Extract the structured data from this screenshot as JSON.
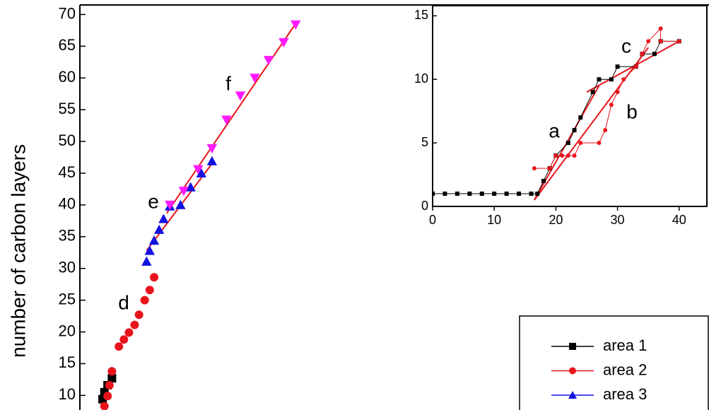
{
  "chart_data": [
    {
      "type": "scatter",
      "y_label": "number of carbon layers",
      "xlim": [
        0,
        100
      ],
      "ylim": [
        7.7,
        71.5
      ],
      "yticks": [
        10,
        15,
        20,
        25,
        30,
        35,
        40,
        45,
        50,
        55,
        60,
        65,
        70
      ],
      "series": [
        {
          "name": "area 1",
          "color": "#000000",
          "marker": "square",
          "x": [
            3.6,
            3.9,
            4.4,
            5.1
          ],
          "values": [
            9.4,
            10.5,
            11.6,
            12.7
          ]
        },
        {
          "name": "area 2",
          "color": "#e8141b",
          "marker": "circle",
          "x": [
            3.9,
            4.4,
            4.7,
            5.1,
            6.2,
            7.0,
            7.8,
            8.7,
            9.4,
            10.3,
            11.1,
            11.8
          ],
          "values": [
            8.3,
            9.9,
            11.6,
            13.8,
            17.7,
            18.8,
            19.9,
            21.1,
            22.7,
            25.0,
            26.6,
            28.6
          ]
        },
        {
          "name": "area 3",
          "color": "#1212e0",
          "marker": "triangle",
          "x": [
            10.6,
            11.1,
            11.8,
            12.6,
            13.3,
            14.3,
            16.0,
            17.6,
            19.3,
            21.0
          ],
          "values": [
            31.1,
            32.8,
            34.4,
            36.1,
            37.8,
            39.8,
            40.0,
            42.8,
            45.0,
            46.9
          ]
        },
        {
          "color": "#ff1aff",
          "marker": "down-triangle",
          "x": [
            14.3,
            16.5,
            18.8,
            21.0,
            23.3,
            25.5,
            27.8,
            30.0,
            32.4,
            34.3
          ],
          "values": [
            40.0,
            42.2,
            45.6,
            48.9,
            53.4,
            57.2,
            60.0,
            62.8,
            65.6,
            68.4
          ]
        }
      ],
      "fits": [
        {
          "color": "#e8141b",
          "x": [
            10.6,
            21.0
          ],
          "values": [
            32.8,
            46.5
          ]
        },
        {
          "color": "#e8141b",
          "x": [
            13.8,
            34.6
          ],
          "values": [
            38.7,
            69.0
          ]
        }
      ],
      "annotations": [
        "d",
        "e",
        "f"
      ]
    },
    {
      "type": "line",
      "xlim": [
        0,
        44.5
      ],
      "ylim": [
        0,
        15.8
      ],
      "xticks": [
        0,
        10,
        20,
        30,
        40
      ],
      "yticks": [
        0,
        5,
        10,
        15
      ],
      "series": [
        {
          "color": "#000000",
          "marker": "square",
          "x": [
            0,
            2,
            4,
            6,
            8,
            10,
            12,
            14,
            16,
            17,
            18,
            19,
            20,
            22,
            23,
            24,
            26,
            27,
            29,
            30,
            33,
            34,
            36,
            37,
            40
          ],
          "values": [
            1,
            1,
            1,
            1,
            1,
            1,
            1,
            1,
            1,
            1,
            2,
            3,
            4,
            5,
            6,
            7,
            9,
            10,
            10,
            11,
            11,
            12,
            12,
            13,
            13
          ]
        },
        {
          "color": "#e8141b",
          "marker": "circle",
          "x": [
            16.5,
            19,
            20,
            21,
            22,
            23,
            24,
            27,
            28,
            29,
            30,
            31,
            33,
            34,
            35,
            37,
            37,
            40
          ],
          "values": [
            3,
            3,
            4,
            4,
            4,
            4,
            5,
            5,
            6,
            8,
            9,
            10,
            11,
            12,
            13,
            14,
            13,
            13
          ]
        }
      ],
      "fits": [
        {
          "color": "#e8141b",
          "x": [
            16.5,
            27
          ],
          "values": [
            0.5,
            9.5
          ]
        },
        {
          "color": "#e8141b",
          "x": [
            16.5,
            35
          ],
          "values": [
            0.5,
            12.5
          ]
        },
        {
          "color": "#e8141b",
          "x": [
            25,
            40
          ],
          "values": [
            9,
            13
          ]
        }
      ],
      "annotations": [
        "a",
        "b",
        "c"
      ]
    }
  ]
}
